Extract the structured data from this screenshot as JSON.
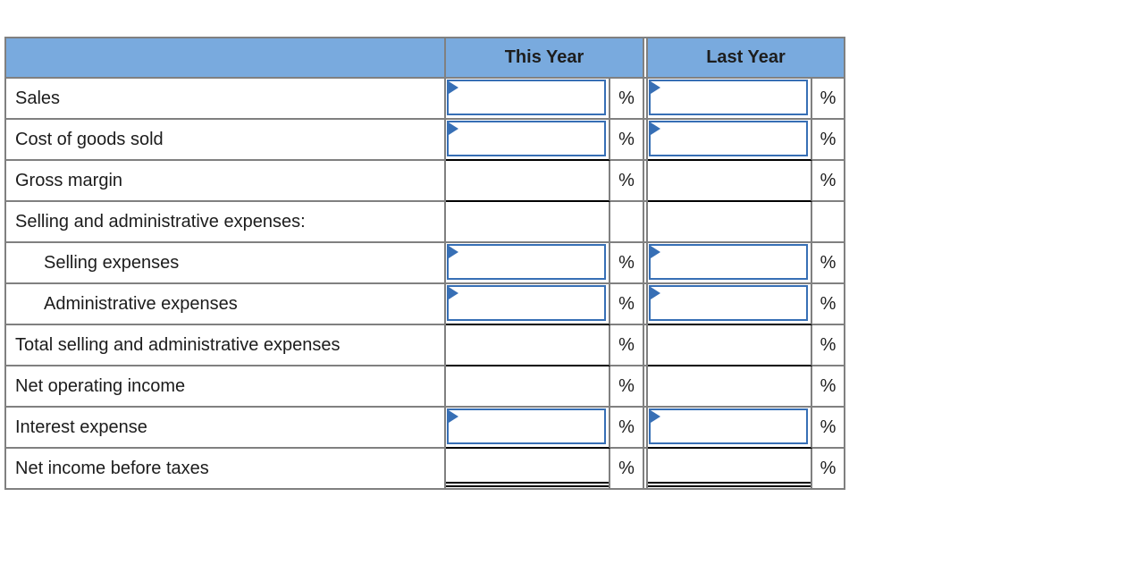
{
  "table": {
    "title_semantic": "common-size comparative income statement entry table",
    "header": {
      "label_column": "",
      "this_year": "This Year",
      "last_year": "Last Year"
    },
    "colors": {
      "header_bg": "#79aade",
      "grid": "#808080",
      "input_border": "#376fb5",
      "rule": "#000000"
    },
    "rows": [
      {
        "label": "Sales",
        "editable": true,
        "this_year_value": "",
        "last_year_value": "",
        "suffix": "%"
      },
      {
        "label": "Cost of goods sold",
        "editable": true,
        "this_year_value": "",
        "last_year_value": "",
        "suffix": "%"
      },
      {
        "label": "Gross margin",
        "editable": false,
        "this_year_value": "",
        "last_year_value": "",
        "suffix": "%"
      },
      {
        "label": "Selling and administrative expenses:",
        "editable": false,
        "this_year_value": "",
        "last_year_value": "",
        "suffix": ""
      },
      {
        "label": "Selling expenses",
        "indented": true,
        "editable": true,
        "this_year_value": "",
        "last_year_value": "",
        "suffix": "%"
      },
      {
        "label": "Administrative expenses",
        "indented": true,
        "editable": true,
        "this_year_value": "",
        "last_year_value": "",
        "suffix": "%"
      },
      {
        "label": "Total selling and administrative expenses",
        "editable": false,
        "this_year_value": "",
        "last_year_value": "",
        "suffix": "%"
      },
      {
        "label": "Net operating income",
        "editable": false,
        "this_year_value": "",
        "last_year_value": "",
        "suffix": "%"
      },
      {
        "label": "Interest expense",
        "editable": true,
        "this_year_value": "",
        "last_year_value": "",
        "suffix": "%"
      },
      {
        "label": "Net income before taxes",
        "editable": false,
        "this_year_value": "",
        "last_year_value": "",
        "suffix": "%"
      }
    ]
  }
}
